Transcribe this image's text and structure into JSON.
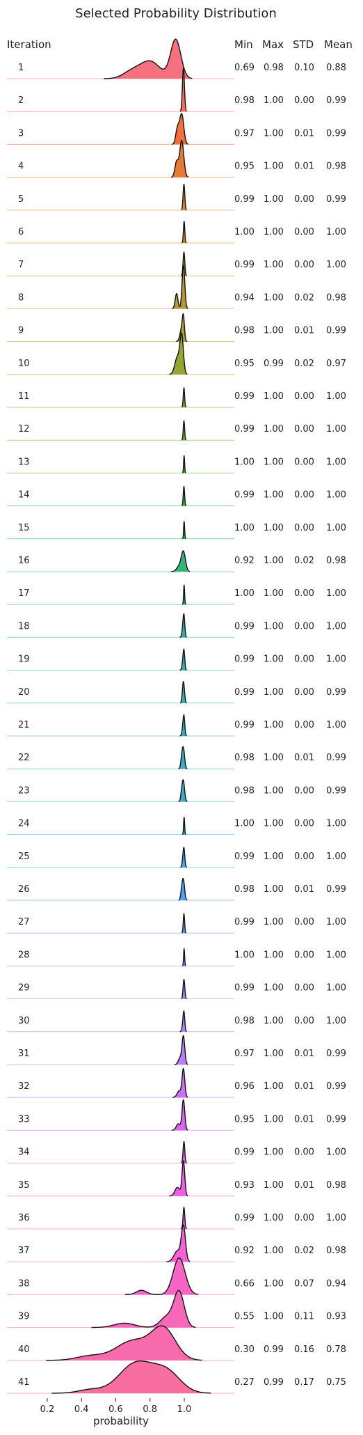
{
  "chart_data": {
    "type": "ridgeline",
    "title": "Selected Probability Distribution",
    "xlabel": "probability",
    "x_ticks": [
      0.2,
      0.4,
      0.6,
      0.8,
      1.0
    ],
    "x_tick_labels": [
      "0.2",
      "0.4",
      "0.6",
      "0.8",
      "1.0"
    ],
    "xlim": [
      0.05,
      1.27
    ],
    "row_header": "Iteration",
    "columns": [
      "Min",
      "Max",
      "STD",
      "Mean"
    ],
    "rows": [
      {
        "iteration": "1",
        "min": "0.69",
        "max": "0.98",
        "std": "0.10",
        "mean": "0.88",
        "color": "#f7707f"
      },
      {
        "iteration": "2",
        "min": "0.98",
        "max": "1.00",
        "std": "0.00",
        "mean": "0.99",
        "color": "#f56d65"
      },
      {
        "iteration": "3",
        "min": "0.97",
        "max": "1.00",
        "std": "0.01",
        "mean": "0.99",
        "color": "#f0713e"
      },
      {
        "iteration": "4",
        "min": "0.95",
        "max": "1.00",
        "std": "0.01",
        "mean": "0.98",
        "color": "#e57a30"
      },
      {
        "iteration": "5",
        "min": "0.99",
        "max": "1.00",
        "std": "0.00",
        "mean": "0.99",
        "color": "#d8852f"
      },
      {
        "iteration": "6",
        "min": "1.00",
        "max": "1.00",
        "std": "0.00",
        "mean": "1.00",
        "color": "#cc8e2f"
      },
      {
        "iteration": "7",
        "min": "0.99",
        "max": "1.00",
        "std": "0.00",
        "mean": "1.00",
        "color": "#c0952f"
      },
      {
        "iteration": "8",
        "min": "0.94",
        "max": "1.00",
        "std": "0.02",
        "mean": "0.98",
        "color": "#b39b2f"
      },
      {
        "iteration": "9",
        "min": "0.98",
        "max": "1.00",
        "std": "0.01",
        "mean": "0.99",
        "color": "#a6a02f"
      },
      {
        "iteration": "10",
        "min": "0.95",
        "max": "0.99",
        "std": "0.02",
        "mean": "0.97",
        "color": "#97a52f"
      },
      {
        "iteration": "11",
        "min": "0.99",
        "max": "1.00",
        "std": "0.00",
        "mean": "1.00",
        "color": "#86aa30"
      },
      {
        "iteration": "12",
        "min": "0.99",
        "max": "1.00",
        "std": "0.00",
        "mean": "1.00",
        "color": "#72ae31"
      },
      {
        "iteration": "13",
        "min": "1.00",
        "max": "1.00",
        "std": "0.00",
        "mean": "1.00",
        "color": "#55b232"
      },
      {
        "iteration": "14",
        "min": "0.99",
        "max": "1.00",
        "std": "0.00",
        "mean": "1.00",
        "color": "#33b445"
      },
      {
        "iteration": "15",
        "min": "1.00",
        "max": "1.00",
        "std": "0.00",
        "mean": "1.00",
        "color": "#33b466"
      },
      {
        "iteration": "16",
        "min": "0.92",
        "max": "1.00",
        "std": "0.02",
        "mean": "0.98",
        "color": "#34b37b"
      },
      {
        "iteration": "17",
        "min": "1.00",
        "max": "1.00",
        "std": "0.00",
        "mean": "1.00",
        "color": "#35b28b"
      },
      {
        "iteration": "18",
        "min": "0.99",
        "max": "1.00",
        "std": "0.00",
        "mean": "1.00",
        "color": "#36b198"
      },
      {
        "iteration": "19",
        "min": "0.99",
        "max": "1.00",
        "std": "0.00",
        "mean": "1.00",
        "color": "#36b0a3"
      },
      {
        "iteration": "20",
        "min": "0.99",
        "max": "1.00",
        "std": "0.00",
        "mean": "0.99",
        "color": "#37afae"
      },
      {
        "iteration": "21",
        "min": "0.99",
        "max": "1.00",
        "std": "0.00",
        "mean": "1.00",
        "color": "#38aeb8"
      },
      {
        "iteration": "22",
        "min": "0.98",
        "max": "1.00",
        "std": "0.01",
        "mean": "0.99",
        "color": "#39adc3"
      },
      {
        "iteration": "23",
        "min": "0.98",
        "max": "1.00",
        "std": "0.00",
        "mean": "0.99",
        "color": "#3aabcf"
      },
      {
        "iteration": "24",
        "min": "1.00",
        "max": "1.00",
        "std": "0.00",
        "mean": "1.00",
        "color": "#3ca9dc"
      },
      {
        "iteration": "25",
        "min": "0.99",
        "max": "1.00",
        "std": "0.00",
        "mean": "1.00",
        "color": "#3fa6eb"
      },
      {
        "iteration": "26",
        "min": "0.98",
        "max": "1.00",
        "std": "0.01",
        "mean": "0.99",
        "color": "#4ea2f4"
      },
      {
        "iteration": "27",
        "min": "0.99",
        "max": "1.00",
        "std": "0.00",
        "mean": "1.00",
        "color": "#6a9cf4"
      },
      {
        "iteration": "28",
        "min": "1.00",
        "max": "1.00",
        "std": "0.00",
        "mean": "1.00",
        "color": "#7f96f4"
      },
      {
        "iteration": "29",
        "min": "0.99",
        "max": "1.00",
        "std": "0.00",
        "mean": "1.00",
        "color": "#938ff4"
      },
      {
        "iteration": "30",
        "min": "0.98",
        "max": "1.00",
        "std": "0.00",
        "mean": "1.00",
        "color": "#a787f4"
      },
      {
        "iteration": "31",
        "min": "0.97",
        "max": "1.00",
        "std": "0.01",
        "mean": "0.99",
        "color": "#b97ef4"
      },
      {
        "iteration": "32",
        "min": "0.96",
        "max": "1.00",
        "std": "0.01",
        "mean": "0.99",
        "color": "#cb72f4"
      },
      {
        "iteration": "33",
        "min": "0.95",
        "max": "1.00",
        "std": "0.01",
        "mean": "0.99",
        "color": "#db64f3"
      },
      {
        "iteration": "34",
        "min": "0.99",
        "max": "1.00",
        "std": "0.00",
        "mean": "1.00",
        "color": "#e75ff0"
      },
      {
        "iteration": "35",
        "min": "0.93",
        "max": "1.00",
        "std": "0.01",
        "mean": "0.98",
        "color": "#ef5ee8"
      },
      {
        "iteration": "36",
        "min": "0.99",
        "max": "1.00",
        "std": "0.00",
        "mean": "1.00",
        "color": "#f45fde"
      },
      {
        "iteration": "37",
        "min": "0.92",
        "max": "1.00",
        "std": "0.02",
        "mean": "0.98",
        "color": "#f562d2"
      },
      {
        "iteration": "38",
        "min": "0.66",
        "max": "1.00",
        "std": "0.07",
        "mean": "0.94",
        "color": "#f665c6"
      },
      {
        "iteration": "39",
        "min": "0.55",
        "max": "1.00",
        "std": "0.11",
        "mean": "0.93",
        "color": "#f668b9"
      },
      {
        "iteration": "40",
        "min": "0.30",
        "max": "0.99",
        "std": "0.16",
        "mean": "0.78",
        "color": "#f76bac"
      },
      {
        "iteration": "41",
        "min": "0.27",
        "max": "0.99",
        "std": "0.17",
        "mean": "0.75",
        "color": "#f76e9f"
      }
    ],
    "distributions": [
      [
        [
          0.69,
          0.15,
          0.05
        ],
        [
          0.8,
          0.4,
          0.06
        ],
        [
          0.95,
          0.9,
          0.03
        ]
      ],
      [
        [
          0.995,
          1.0,
          0.006
        ]
      ],
      [
        [
          0.985,
          0.7,
          0.012
        ],
        [
          0.96,
          0.35,
          0.01
        ]
      ],
      [
        [
          0.985,
          0.85,
          0.012
        ],
        [
          0.955,
          0.35,
          0.01
        ]
      ],
      [
        [
          0.998,
          0.6,
          0.005
        ]
      ],
      [
        [
          0.999,
          0.5,
          0.004
        ]
      ],
      [
        [
          0.998,
          0.55,
          0.005
        ]
      ],
      [
        [
          0.995,
          1.0,
          0.008
        ],
        [
          0.955,
          0.35,
          0.008
        ]
      ],
      [
        [
          0.995,
          0.45,
          0.006
        ],
        [
          0.985,
          0.3,
          0.01
        ]
      ],
      [
        [
          0.985,
          0.85,
          0.01
        ],
        [
          0.96,
          0.4,
          0.015
        ]
      ],
      [
        [
          0.998,
          0.45,
          0.004
        ]
      ],
      [
        [
          0.998,
          0.45,
          0.004
        ]
      ],
      [
        [
          0.999,
          0.4,
          0.003
        ]
      ],
      [
        [
          0.998,
          0.45,
          0.004
        ]
      ],
      [
        [
          0.999,
          0.4,
          0.003
        ]
      ],
      [
        [
          0.995,
          0.45,
          0.012
        ],
        [
          0.97,
          0.12,
          0.015
        ]
      ],
      [
        [
          0.999,
          0.45,
          0.003
        ]
      ],
      [
        [
          0.998,
          0.5,
          0.005
        ],
        [
          0.99,
          0.15,
          0.005
        ]
      ],
      [
        [
          0.998,
          0.45,
          0.005
        ],
        [
          0.99,
          0.12,
          0.005
        ]
      ],
      [
        [
          0.995,
          0.5,
          0.006
        ]
      ],
      [
        [
          0.998,
          0.45,
          0.005
        ],
        [
          0.99,
          0.12,
          0.005
        ]
      ],
      [
        [
          0.995,
          0.45,
          0.007
        ],
        [
          0.985,
          0.2,
          0.006
        ]
      ],
      [
        [
          0.995,
          0.45,
          0.007
        ],
        [
          0.985,
          0.18,
          0.006
        ]
      ],
      [
        [
          0.999,
          0.4,
          0.003
        ]
      ],
      [
        [
          0.998,
          0.45,
          0.005
        ],
        [
          0.99,
          0.1,
          0.004
        ]
      ],
      [
        [
          0.995,
          0.45,
          0.007
        ],
        [
          0.985,
          0.18,
          0.006
        ]
      ],
      [
        [
          0.998,
          0.45,
          0.004
        ]
      ],
      [
        [
          0.999,
          0.4,
          0.003
        ]
      ],
      [
        [
          0.998,
          0.45,
          0.005
        ]
      ],
      [
        [
          0.998,
          0.45,
          0.005
        ],
        [
          0.99,
          0.1,
          0.005
        ]
      ],
      [
        [
          0.995,
          0.65,
          0.008
        ],
        [
          0.975,
          0.15,
          0.01
        ]
      ],
      [
        [
          0.995,
          0.65,
          0.008
        ],
        [
          0.97,
          0.15,
          0.012
        ]
      ],
      [
        [
          0.995,
          0.7,
          0.008
        ],
        [
          0.965,
          0.15,
          0.012
        ]
      ],
      [
        [
          0.998,
          0.5,
          0.005
        ]
      ],
      [
        [
          0.995,
          0.8,
          0.008
        ],
        [
          0.96,
          0.2,
          0.015
        ]
      ],
      [
        [
          0.998,
          0.5,
          0.005
        ]
      ],
      [
        [
          0.995,
          0.8,
          0.012
        ],
        [
          0.96,
          0.25,
          0.02
        ]
      ],
      [
        [
          0.97,
          0.85,
          0.035
        ],
        [
          0.75,
          0.1,
          0.03
        ]
      ],
      [
        [
          0.97,
          0.8,
          0.03
        ],
        [
          0.9,
          0.25,
          0.04
        ],
        [
          0.65,
          0.1,
          0.06
        ]
      ],
      [
        [
          0.88,
          0.7,
          0.07
        ],
        [
          0.7,
          0.45,
          0.1
        ],
        [
          0.45,
          0.1,
          0.08
        ]
      ],
      [
        [
          0.72,
          0.7,
          0.1
        ],
        [
          0.9,
          0.45,
          0.08
        ],
        [
          0.45,
          0.08,
          0.07
        ]
      ]
    ]
  }
}
